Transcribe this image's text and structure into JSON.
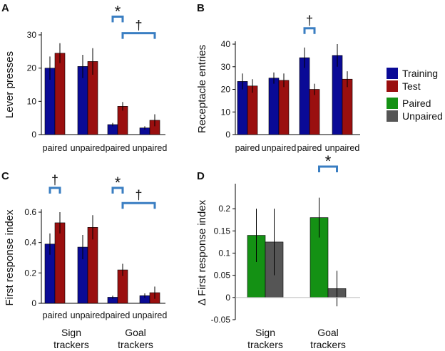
{
  "colors": {
    "training": "#0a0a96",
    "test": "#9a0f0f",
    "paired": "#149114",
    "unpaired": "#555555",
    "bracket": "#3a7ec2",
    "axis": "#000000"
  },
  "legend": [
    {
      "label": "Training",
      "color": "#0a0a96"
    },
    {
      "label": "Test",
      "color": "#9a0f0f"
    },
    {
      "label": "Paired",
      "color": "#149114"
    },
    {
      "label": "Unpaired",
      "color": "#555555"
    }
  ],
  "group_labels": [
    {
      "top": "Sign",
      "bottom": "trackers"
    },
    {
      "top": "Goal",
      "bottom": "trackers"
    }
  ],
  "chart_data": [
    {
      "panel": "A",
      "type": "bar",
      "ylabel": "Lever presses",
      "ylim": [
        0,
        30
      ],
      "yticks": [
        0,
        10,
        20,
        30
      ],
      "categories": [
        "paired",
        "unpaired",
        "paired",
        "unpaired"
      ],
      "series": [
        {
          "name": "Training",
          "values": [
            20,
            20.5,
            3,
            2
          ],
          "errors": [
            3.5,
            3.5,
            0.5,
            0.5
          ]
        },
        {
          "name": "Test",
          "values": [
            24.5,
            22,
            8.5,
            4.3
          ],
          "errors": [
            3,
            4,
            1.3,
            1.8
          ]
        }
      ],
      "annotations": [
        {
          "symbol": "*",
          "from": 2,
          "to": 2.5,
          "level": 35.5
        },
        {
          "symbol": "†",
          "from": 2.5,
          "to": 3.5,
          "level": 30.5
        }
      ]
    },
    {
      "panel": "B",
      "type": "bar",
      "ylabel": "Receptacle entries",
      "ylim": [
        0,
        40
      ],
      "yticks": [
        0,
        10,
        20,
        30,
        40
      ],
      "categories": [
        "paired",
        "unpaired",
        "paired",
        "unpaired"
      ],
      "series": [
        {
          "name": "Training",
          "values": [
            23.5,
            25,
            34,
            35
          ],
          "errors": [
            3.5,
            2.5,
            4.5,
            5
          ]
        },
        {
          "name": "Test",
          "values": [
            21.5,
            24,
            20,
            24.5
          ],
          "errors": [
            3,
            3,
            2.5,
            3.5
          ]
        }
      ],
      "annotations": [
        {
          "symbol": "†",
          "from": 2,
          "to": 2.5,
          "level": 47
        }
      ]
    },
    {
      "panel": "C",
      "type": "bar",
      "ylabel": "First response index",
      "ylim": [
        0,
        0.6
      ],
      "yticks": [
        0,
        0.2,
        0.4,
        0.6
      ],
      "categories": [
        "paired",
        "unpaired",
        "paired",
        "unpaired"
      ],
      "series": [
        {
          "name": "Training",
          "values": [
            0.39,
            0.37,
            0.04,
            0.05
          ],
          "errors": [
            0.07,
            0.08,
            0.01,
            0.015
          ]
        },
        {
          "name": "Test",
          "values": [
            0.53,
            0.5,
            0.22,
            0.07
          ],
          "errors": [
            0.07,
            0.08,
            0.04,
            0.04
          ]
        }
      ],
      "annotations": [
        {
          "symbol": "†",
          "from": 0,
          "to": 0.5,
          "level": 0.76
        },
        {
          "symbol": "*",
          "from": 2,
          "to": 2.5,
          "level": 0.76
        },
        {
          "symbol": "†",
          "from": 2.5,
          "to": 3.5,
          "level": 0.66
        }
      ]
    },
    {
      "panel": "D",
      "type": "bar",
      "ylabel": "Δ First response index",
      "ylim": [
        -0.05,
        0.25
      ],
      "yticks": [
        -0.05,
        0,
        0.05,
        0.1,
        0.15,
        0.2
      ],
      "categories": [
        "Sign trackers",
        "Goal trackers"
      ],
      "series": [
        {
          "name": "Paired",
          "values": [
            0.14,
            0.18
          ],
          "errors": [
            0.06,
            0.045
          ]
        },
        {
          "name": "Unpaired",
          "values": [
            0.125,
            0.02
          ],
          "errors": [
            0.075,
            0.04
          ]
        }
      ],
      "annotations": [
        {
          "symbol": "*",
          "from": 1,
          "to": 1.5,
          "level": 0.295
        }
      ]
    }
  ]
}
